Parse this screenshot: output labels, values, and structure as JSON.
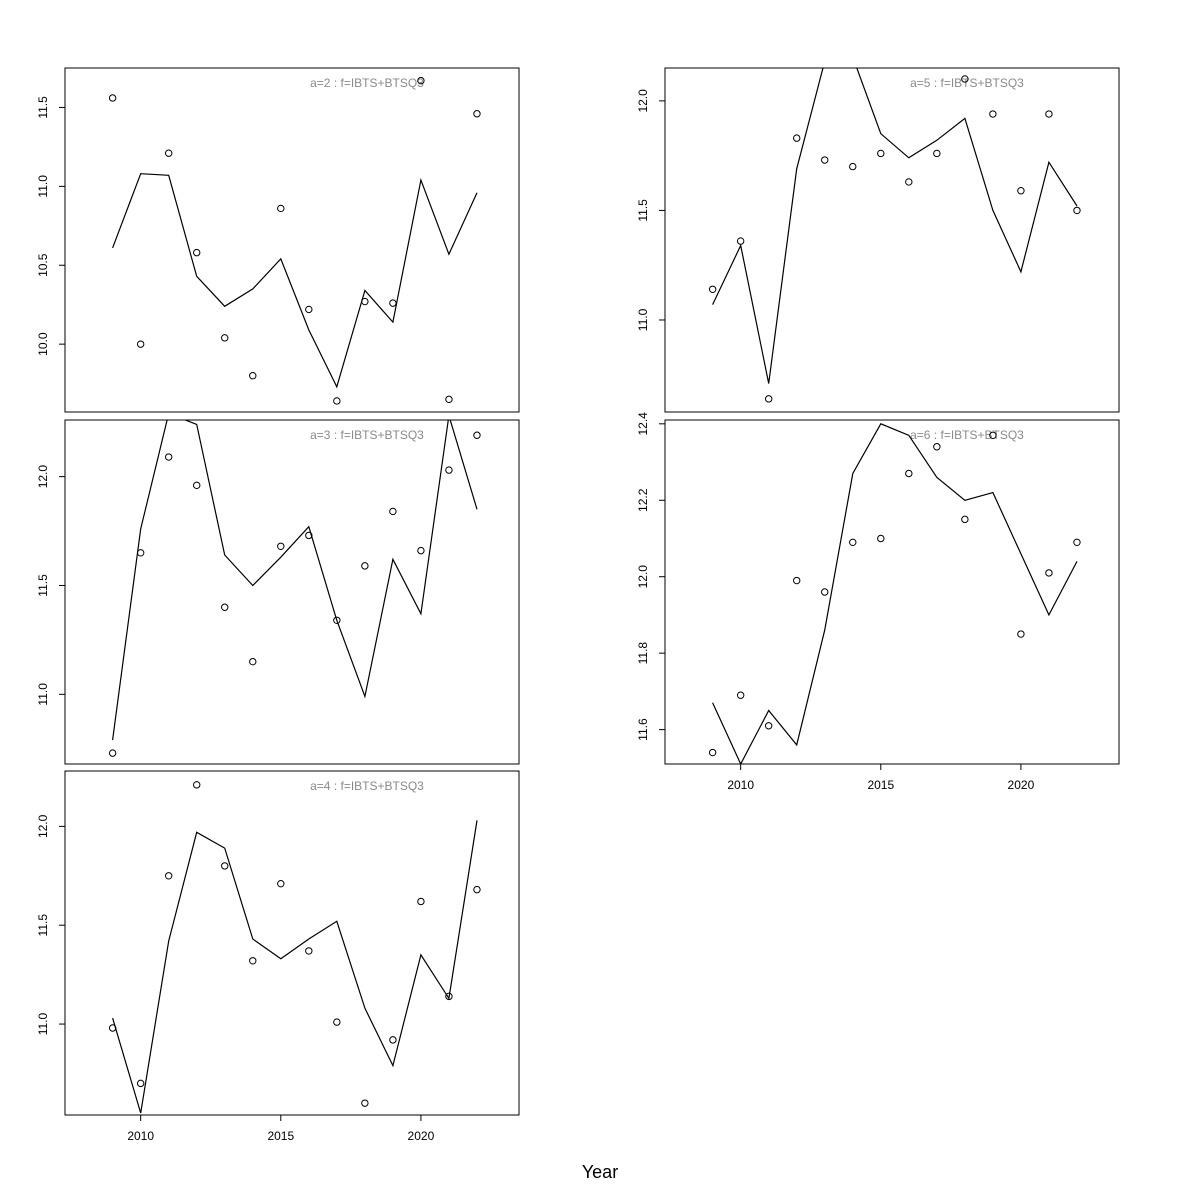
{
  "xlabel": "Year",
  "chart_data": [
    {
      "type": "scatter",
      "title": "a=2 : f=IBTS+BTSQ3",
      "x": [
        2009,
        2010,
        2011,
        2012,
        2013,
        2014,
        2015,
        2016,
        2017,
        2018,
        2019,
        2020,
        2021,
        2022
      ],
      "series": [
        {
          "kind": "points",
          "values": [
            11.56,
            10.0,
            11.21,
            10.58,
            10.04,
            9.8,
            10.86,
            10.22,
            9.64,
            10.27,
            10.26,
            11.67,
            9.65,
            11.46
          ]
        },
        {
          "kind": "line",
          "values": [
            10.61,
            11.08,
            11.07,
            10.43,
            10.24,
            10.35,
            10.54,
            10.09,
            9.73,
            10.34,
            10.14,
            11.04,
            10.57,
            10.96
          ]
        }
      ],
      "xlim": [
        2007.3,
        2023.5
      ],
      "ylim": [
        9.57,
        11.75
      ],
      "yticks": [
        10.0,
        10.5,
        11.0,
        11.5
      ],
      "ytick_labels": [
        "10.0",
        "10.5",
        "11.0",
        "11.5"
      ],
      "xticks": [],
      "xtick_labels": []
    },
    {
      "type": "scatter",
      "title": "a=3 : f=IBTS+BTSQ3",
      "x": [
        2009,
        2010,
        2011,
        2012,
        2013,
        2014,
        2015,
        2016,
        2017,
        2018,
        2019,
        2020,
        2021,
        2022
      ],
      "series": [
        {
          "kind": "points",
          "values": [
            10.73,
            11.65,
            12.09,
            11.96,
            11.4,
            11.15,
            11.68,
            11.73,
            11.34,
            11.59,
            11.84,
            11.66,
            12.03,
            12.19
          ]
        },
        {
          "kind": "line",
          "values": [
            10.79,
            11.76,
            12.29,
            12.24,
            11.64,
            11.5,
            11.63,
            11.77,
            11.34,
            10.99,
            11.62,
            11.37,
            12.28,
            11.85
          ]
        }
      ],
      "xlim": [
        2007.3,
        2023.5
      ],
      "ylim": [
        10.68,
        12.26
      ],
      "yticks": [
        11.0,
        11.5,
        12.0
      ],
      "ytick_labels": [
        "11.0",
        "11.5",
        "12.0"
      ],
      "xticks": [],
      "xtick_labels": []
    },
    {
      "type": "scatter",
      "title": "a=4 : f=IBTS+BTSQ3",
      "x": [
        2009,
        2010,
        2011,
        2012,
        2013,
        2014,
        2015,
        2016,
        2017,
        2018,
        2019,
        2020,
        2021,
        2022
      ],
      "series": [
        {
          "kind": "points",
          "values": [
            10.98,
            10.7,
            11.75,
            12.21,
            11.8,
            11.32,
            11.71,
            11.37,
            11.01,
            10.6,
            10.92,
            11.62,
            11.14,
            11.68
          ]
        },
        {
          "kind": "line",
          "values": [
            11.03,
            10.55,
            11.42,
            11.97,
            11.89,
            11.43,
            11.33,
            11.43,
            11.52,
            11.08,
            10.79,
            11.35,
            11.13,
            12.03
          ]
        }
      ],
      "xlim": [
        2007.3,
        2023.5
      ],
      "ylim": [
        10.54,
        12.28
      ],
      "yticks": [
        11.0,
        11.5,
        12.0
      ],
      "ytick_labels": [
        "11.0",
        "11.5",
        "12.0"
      ],
      "xticks": [
        2010,
        2015,
        2020
      ],
      "xtick_labels": [
        "2010",
        "2015",
        "2020"
      ]
    },
    {
      "type": "scatter",
      "title": "a=5 : f=IBTS+BTSQ3",
      "x": [
        2009,
        2010,
        2011,
        2012,
        2013,
        2014,
        2015,
        2016,
        2017,
        2018,
        2019,
        2020,
        2021,
        2022
      ],
      "series": [
        {
          "kind": "points",
          "values": [
            11.14,
            11.36,
            10.64,
            11.83,
            11.73,
            11.7,
            11.76,
            11.63,
            11.76,
            12.1,
            11.94,
            11.59,
            11.94,
            11.5
          ]
        },
        {
          "kind": "line",
          "values": [
            11.07,
            11.34,
            10.71,
            11.69,
            12.18,
            12.2,
            11.85,
            11.74,
            11.82,
            11.92,
            11.5,
            11.22,
            11.72,
            11.52
          ]
        }
      ],
      "xlim": [
        2007.3,
        2023.5
      ],
      "ylim": [
        10.58,
        12.15
      ],
      "yticks": [
        11.0,
        11.5,
        12.0
      ],
      "ytick_labels": [
        "11.0",
        "11.5",
        "12.0"
      ],
      "xticks": [],
      "xtick_labels": []
    },
    {
      "type": "scatter",
      "title": "a=6 : f=IBTS+BTSQ3",
      "x": [
        2009,
        2010,
        2011,
        2012,
        2013,
        2014,
        2015,
        2016,
        2017,
        2018,
        2019,
        2020,
        2021,
        2022
      ],
      "series": [
        {
          "kind": "points",
          "values": [
            11.54,
            11.69,
            11.61,
            11.99,
            11.96,
            12.09,
            12.1,
            12.27,
            12.34,
            12.15,
            12.37,
            11.85,
            12.01,
            12.09
          ]
        },
        {
          "kind": "line",
          "values": [
            11.67,
            11.51,
            11.65,
            11.56,
            11.86,
            12.27,
            12.4,
            12.37,
            12.26,
            12.2,
            12.22,
            12.06,
            11.9,
            12.04
          ]
        }
      ],
      "xlim": [
        2007.3,
        2023.5
      ],
      "ylim": [
        11.51,
        12.41
      ],
      "yticks": [
        11.6,
        11.8,
        12.0,
        12.2,
        12.4
      ],
      "ytick_labels": [
        "11.6",
        "11.8",
        "12.0",
        "12.2",
        "12.4"
      ],
      "xticks": [
        2010,
        2015,
        2020
      ],
      "xtick_labels": [
        "2010",
        "2015",
        "2020"
      ]
    }
  ]
}
